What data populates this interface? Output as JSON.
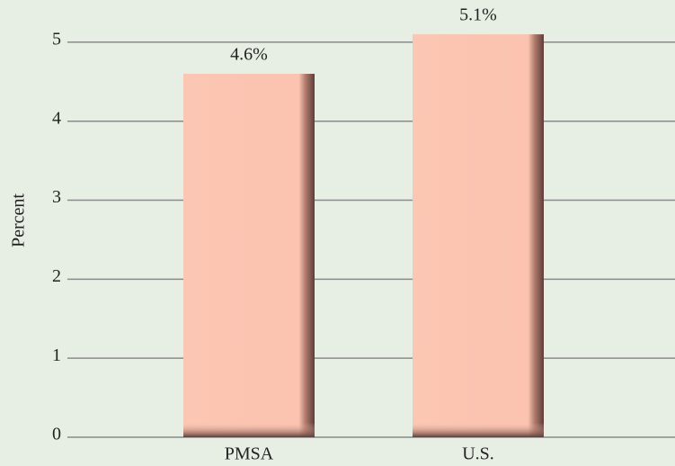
{
  "chart_data": {
    "type": "bar",
    "y_label": "Percent",
    "categories": [
      "PMSA",
      "U.S."
    ],
    "values": [
      4.6,
      5.1
    ],
    "value_labels": [
      "4.6%",
      "5.1%"
    ],
    "color": "#fbc3b0",
    "ylim": [
      0,
      5.5
    ],
    "yticks": [
      0,
      1,
      2,
      3,
      4,
      5
    ],
    "grid": true
  }
}
